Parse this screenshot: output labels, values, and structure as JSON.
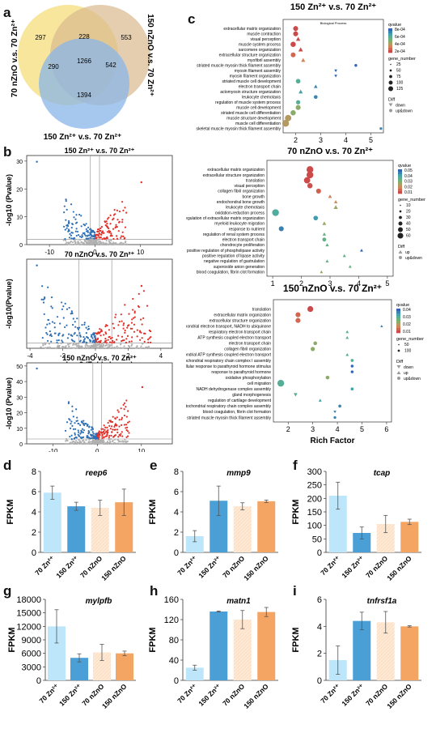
{
  "labels": {
    "a": "a",
    "b": "b",
    "c": "c",
    "d": "d",
    "e": "e",
    "f": "f",
    "g": "g",
    "h": "h",
    "i": "i"
  },
  "venn": {
    "sets": [
      "70 nZnO v.s. 70 Zn²⁺",
      "150 nZnO v.s. 70 Zn²⁺",
      "150 Zn²⁺ v.s. 70 Zn²⁺"
    ],
    "counts": {
      "a_only": "297",
      "ab": "228",
      "b_only": "553",
      "ac": "290",
      "abc": "1266",
      "bc": "542",
      "c_only": "1394"
    },
    "colors": [
      "#f5dd7c",
      "#d9b98d",
      "#8ab6e8"
    ]
  },
  "volcano": [
    {
      "title": "150 Zn²⁺ v.s. 70 Zn²⁺",
      "xlabel": "",
      "ylabel": "-log10 (Pvalue)",
      "xticks": [
        "-10",
        "0",
        "10"
      ],
      "yticks": [
        "0",
        "10",
        "20",
        "30"
      ]
    },
    {
      "title": "70 nZnO v.s. 70 Zn²⁺",
      "xlabel": "Log2 (Fold change)",
      "ylabel": "-log10(Pvalue)",
      "xticks": [
        "-4",
        "-2",
        "0",
        "2",
        "4"
      ],
      "yticks": []
    },
    {
      "title": "150 nZnO v.s. 70 Zn²⁺",
      "xlabel": "log2 (Fold Change)",
      "ylabel": "-log10 (Pvalue)",
      "xticks": [
        "-10",
        "0",
        "10"
      ],
      "yticks": [
        "0",
        "10",
        "20",
        "30",
        "40",
        "50"
      ]
    }
  ],
  "colors": {
    "up": "#e0302a",
    "down": "#2f6fb3",
    "ns": "#b0b0b0"
  },
  "chart_data": [
    {
      "type": "scatter",
      "title": "150 Zn²⁺ v.s. 70 Zn²⁺",
      "subtitle": "Biological Process",
      "xlabel": "",
      "xticks": [
        "2",
        "3",
        "4",
        "5"
      ],
      "xlim": [
        1.5,
        5.5
      ],
      "terms": [
        "extracellular matrix organization",
        "muscle contraction",
        "visual perception",
        "muscle system process",
        "sarcomere organization",
        "extracellular structure organization",
        "myofibril assembly",
        "striated muscle myosin thick filament assembly",
        "myosin filament assembly",
        "myosin filament organization",
        "striated muscle cell development",
        "electron transport chain",
        "actomyosin structure organization",
        "leukocyte chemotaxis",
        "regulation of muscle system process",
        "muscle cell development",
        "striated muscle cell differentiation",
        "muscle structure development",
        "muscle cell differentiation",
        "skeletal muscle myosin thick filament assembly"
      ],
      "x": [
        2.0,
        2.0,
        2.1,
        1.9,
        2.2,
        1.9,
        2.3,
        4.4,
        3.6,
        3.6,
        2.1,
        2.8,
        2.2,
        2.8,
        2.1,
        2.1,
        1.9,
        1.7,
        1.6,
        5.4
      ],
      "qvalue": [
        0.0,
        0.0,
        0.0,
        0.0,
        0.0,
        0.0001,
        0.0002,
        0.0009,
        0.0009,
        0.0009,
        0.0006,
        0.0008,
        0.0007,
        0.0008,
        0.0006,
        0.0004,
        0.0004,
        0.0003,
        0.0003,
        0.0008
      ],
      "gene_number": [
        50,
        50,
        35,
        60,
        40,
        45,
        30,
        6,
        8,
        8,
        40,
        20,
        30,
        20,
        30,
        50,
        60,
        100,
        120,
        5
      ],
      "diff": [
        "up&down",
        "up&down",
        "up",
        "up&down",
        "up",
        "up&down",
        "up",
        "up&down",
        "down",
        "down",
        "up&down",
        "up",
        "up",
        "up&down",
        "up&down",
        "up&down",
        "up&down",
        "up&down",
        "up&down",
        "up&down"
      ],
      "legend": {
        "qvalue_title": "qvalue",
        "qvalue_ticks": [
          "8e-04",
          "6e-04",
          "4e-04",
          "2e-04"
        ],
        "gene_title": "gene_number",
        "gene_ticks": [
          "25",
          "50",
          "75",
          "100",
          "125"
        ],
        "diff_title": "Diff",
        "diff_items": [
          "down",
          "up&down"
        ]
      }
    },
    {
      "type": "scatter",
      "title": "70 nZnO v.s. 70 Zn²⁺",
      "xlabel": "",
      "xticks": [
        "1",
        "2",
        "3",
        "4",
        "5"
      ],
      "xlim": [
        0.8,
        5.2
      ],
      "terms": [
        "extracellular matrix organization",
        "extracellular structure organization",
        "translation",
        "visual perception",
        "collagen fibril organization",
        "bone growth",
        "endochondral bone growth",
        "leukocyte chemotaxis",
        "oxidation-reduction process",
        "regulation of extracellular matrix organization",
        "myeloid leukocyte migration",
        "response to nutrient",
        "regulation of renal system process",
        "electron transport chain",
        "chondrocyte proliferation",
        "positive regulation of phospholipase activity",
        "positive regulation of lipase activity",
        "negative regulation of gastrulation",
        "superoxide anion generation",
        "blood coagulation, fibrin clot formation"
      ],
      "x": [
        2.3,
        2.3,
        2.2,
        2.3,
        2.6,
        3.0,
        3.2,
        3.2,
        1.1,
        2.5,
        2.8,
        1.3,
        2.8,
        2.8,
        2.9,
        4.1,
        3.5,
        2.9,
        3.7,
        2.7
      ],
      "qvalue": [
        0.0,
        0.0,
        0.0,
        0.001,
        0.004,
        0.01,
        0.012,
        0.02,
        0.035,
        0.04,
        0.02,
        0.045,
        0.03,
        0.03,
        0.03,
        0.05,
        0.03,
        0.03,
        0.03,
        0.02
      ],
      "gene_number": [
        60,
        60,
        50,
        30,
        25,
        10,
        8,
        15,
        60,
        20,
        12,
        25,
        8,
        12,
        8,
        5,
        6,
        6,
        5,
        5
      ],
      "diff": [
        "up&down",
        "up&down",
        "up&down",
        "up&down",
        "up&down",
        "up",
        "up",
        "up",
        "up&down",
        "up&down",
        "up",
        "up&down",
        "up",
        "up&down",
        "up",
        "up",
        "up",
        "up",
        "up",
        "up"
      ],
      "legend": {
        "qvalue_title": "qvalue",
        "qvalue_ticks": [
          "0.05",
          "0.04",
          "0.03",
          "0.02",
          "0.01"
        ],
        "gene_title": "gene_number",
        "gene_ticks": [
          "10",
          "20",
          "30",
          "40",
          "50",
          "60"
        ],
        "diff_title": "Diff",
        "diff_items": [
          "up",
          "up&down"
        ]
      }
    },
    {
      "type": "scatter",
      "title": "150 nZnO v.s. 70 Zn²⁺",
      "xlabel": "Rich Factor",
      "xticks": [
        "2",
        "3",
        "4",
        "5",
        "6"
      ],
      "xlim": [
        1.4,
        6.2
      ],
      "terms": [
        "translation",
        "extracellular matrix organization",
        "extracellular structure organization",
        "mitochondrial electron transport, NADH to ubiquinone",
        "respiratory electron transport chain",
        "ATP synthesis coupled electron transport",
        "electron transport chain",
        "collagen fibril organization",
        "mitochondrial ATP synthesis coupled electron transport",
        "mitochondrial respiratory chain complex I assembly",
        "cellular response to parathyroid hormone stimulus",
        "response to parathyroid hormone",
        "oxidative phosphorylation",
        "cell migration",
        "NADH dehydrogenase complex assembly",
        "gland morphogenesis",
        "regulation of cartilage development",
        "mitochondrial respiratory chain complex assembly",
        "blood coagulation, fibrin clot formation",
        "striated muscle myosin thick filament assembly"
      ],
      "x": [
        2.9,
        2.4,
        2.4,
        5.8,
        4.4,
        4.4,
        3.1,
        3.0,
        4.4,
        4.6,
        4.6,
        4.6,
        3.6,
        1.7,
        4.6,
        2.3,
        3.3,
        4.1,
        3.9,
        3.9
      ],
      "qvalue": [
        0.0,
        0.005,
        0.005,
        0.04,
        0.03,
        0.03,
        0.02,
        0.02,
        0.03,
        0.03,
        0.045,
        0.045,
        0.02,
        0.03,
        0.035,
        0.03,
        0.035,
        0.04,
        0.04,
        0.04
      ],
      "gene_number": [
        80,
        50,
        50,
        5,
        10,
        10,
        20,
        30,
        10,
        8,
        6,
        6,
        20,
        120,
        8,
        20,
        10,
        8,
        6,
        5
      ],
      "diff": [
        "up&down",
        "up&down",
        "up&down",
        "up",
        "up",
        "up",
        "up&down",
        "up&down",
        "up",
        "up&down",
        "up&down",
        "up&down",
        "up&down",
        "up&down",
        "up&down",
        "down",
        "up",
        "up&down",
        "down",
        "up&down"
      ],
      "legend": {
        "qvalue_title": "qvalue",
        "qvalue_ticks": [
          "0.04",
          "0.03",
          "0.02",
          "0.01"
        ],
        "gene_title": "gene_number",
        "gene_ticks": [
          "50",
          "100"
        ],
        "diff_title": "Diff",
        "diff_items": [
          "down",
          "up",
          "up&down"
        ]
      }
    },
    {
      "type": "bar",
      "gene": "reep6",
      "ylabel": "FPKM",
      "categories": [
        "70 Zn²⁺",
        "150 Zn²⁺",
        "70 nZnO",
        "150 nZnO"
      ],
      "values": [
        5.9,
        4.55,
        4.4,
        4.95
      ],
      "errors": [
        0.65,
        0.4,
        0.75,
        1.3
      ],
      "ylim": [
        0,
        8
      ],
      "yticks": [
        "0",
        "2",
        "4",
        "6",
        "8"
      ]
    },
    {
      "type": "bar",
      "gene": "mmp9",
      "ylabel": "FPKM",
      "categories": [
        "70 Zn²⁺",
        "150 Zn²⁺",
        "70 nZnO",
        "150 nZnO"
      ],
      "values": [
        1.6,
        5.1,
        4.55,
        5.05
      ],
      "errors": [
        0.55,
        1.45,
        0.35,
        0.12
      ],
      "ylim": [
        0,
        8
      ],
      "yticks": [
        "0",
        "2",
        "4",
        "6",
        "8"
      ]
    },
    {
      "type": "bar",
      "gene": "tcap",
      "ylabel": "FPKM",
      "categories": [
        "70 Zn²⁺",
        "150 Zn²⁺",
        "70 nZnO",
        "150 nZnO"
      ],
      "values": [
        210,
        72,
        105,
        113
      ],
      "errors": [
        50,
        22,
        32,
        10
      ],
      "ylim": [
        0,
        300
      ],
      "yticks": [
        "0",
        "50",
        "100",
        "150",
        "200",
        "250",
        "300"
      ]
    },
    {
      "type": "bar",
      "gene": "mylpfb",
      "ylabel": "FPKM",
      "categories": [
        "70 Zn²⁺",
        "150 Zn²⁺",
        "70 nZnO",
        "150 nZnO"
      ],
      "values": [
        12000,
        5000,
        6200,
        6000
      ],
      "errors": [
        3700,
        900,
        1800,
        500
      ],
      "ylim": [
        0,
        18000
      ],
      "yticks": [
        "0",
        "3000",
        "6000",
        "9000",
        "12000",
        "15000",
        "18000"
      ]
    },
    {
      "type": "bar",
      "gene": "matn1",
      "ylabel": "FPKM",
      "categories": [
        "70 Zn²⁺",
        "150 Zn²⁺",
        "70 nZnO",
        "150 nZnO"
      ],
      "values": [
        25,
        136,
        120,
        135
      ],
      "errors": [
        5,
        1,
        18,
        9
      ],
      "ylim": [
        0,
        160
      ],
      "yticks": [
        "0",
        "40",
        "80",
        "120",
        "160"
      ]
    },
    {
      "type": "bar",
      "gene": "tnfrsf1a",
      "ylabel": "FPKM",
      "categories": [
        "70 Zn²⁺",
        "150 Zn²⁺",
        "70 nZnO",
        "150 nZnO"
      ],
      "values": [
        1.5,
        4.4,
        4.3,
        4.0
      ],
      "errors": [
        1.05,
        0.65,
        0.8,
        0.05
      ],
      "ylim": [
        0,
        6
      ],
      "yticks": [
        "0",
        "2",
        "4",
        "6"
      ]
    }
  ],
  "bar_colors": [
    "#bde6fb",
    "#4a9fd6",
    "#fde1c7",
    "#f4a463"
  ]
}
